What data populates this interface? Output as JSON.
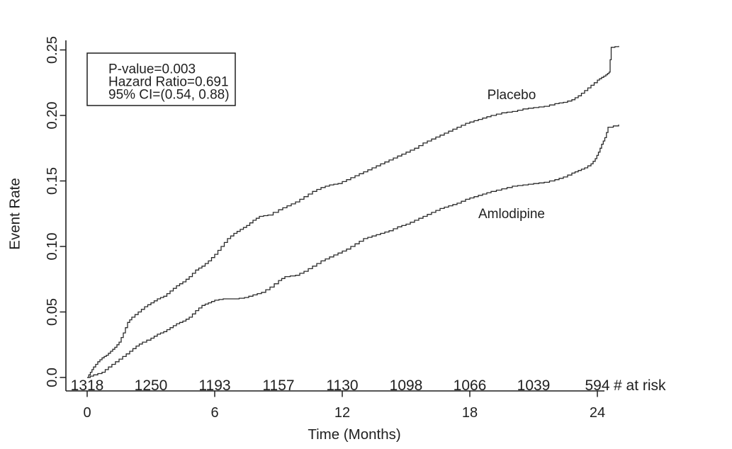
{
  "figure": {
    "background": "#ffffff",
    "ink_color": "#1f1f1f",
    "curve_color": "#2a2a2a"
  },
  "chart_data": {
    "type": "line",
    "subtype": "kaplan_meier_step_cumulative_event_rate",
    "title": "",
    "xlabel": "Time (Months)",
    "ylabel": "Event Rate",
    "xlim": [
      0,
      25
    ],
    "ylim": [
      0.0,
      0.26
    ],
    "grid": false,
    "legend_position": "inline-curve-labels",
    "x_ticks": [
      0,
      6,
      12,
      18,
      24
    ],
    "x_tick_labels": [
      "0",
      "6",
      "12",
      "18",
      "24"
    ],
    "y_ticks": [
      0.0,
      0.05,
      0.1,
      0.15,
      0.2,
      0.25
    ],
    "y_tick_labels": [
      "0.0",
      "0.05",
      "0.10",
      "0.15",
      "0.20",
      "0.25"
    ],
    "stats_box": {
      "p_value": "0.003",
      "hazard_ratio": "0.691",
      "ci_95": "(0.54, 0.88)",
      "lines": [
        "P-value=0.003",
        "Hazard Ratio=0.691",
        "95% CI=(0.54, 0.88)"
      ]
    },
    "at_risk": {
      "label": "# at risk",
      "months": [
        0,
        3,
        6,
        9,
        12,
        15,
        18,
        21,
        24
      ],
      "counts": [
        "1318",
        "1250",
        "1193",
        "1157",
        "1130",
        "1098",
        "1066",
        "1039",
        "594"
      ]
    },
    "series": [
      {
        "name": "Placebo",
        "points": [
          [
            0,
            0.0
          ],
          [
            0.15,
            0.004
          ],
          [
            0.3,
            0.008
          ],
          [
            0.5,
            0.012
          ],
          [
            0.7,
            0.015
          ],
          [
            0.9,
            0.017
          ],
          [
            1.1,
            0.02
          ],
          [
            1.3,
            0.023
          ],
          [
            1.5,
            0.027
          ],
          [
            1.7,
            0.034
          ],
          [
            1.9,
            0.042
          ],
          [
            2.1,
            0.046
          ],
          [
            2.4,
            0.05
          ],
          [
            2.7,
            0.054
          ],
          [
            3.0,
            0.057
          ],
          [
            3.3,
            0.06
          ],
          [
            3.6,
            0.062
          ],
          [
            3.9,
            0.066
          ],
          [
            4.2,
            0.07
          ],
          [
            4.5,
            0.073
          ],
          [
            4.8,
            0.077
          ],
          [
            5.1,
            0.082
          ],
          [
            5.4,
            0.085
          ],
          [
            5.7,
            0.089
          ],
          [
            6.0,
            0.094
          ],
          [
            6.3,
            0.1
          ],
          [
            6.6,
            0.106
          ],
          [
            6.9,
            0.11
          ],
          [
            7.2,
            0.113
          ],
          [
            7.5,
            0.116
          ],
          [
            7.8,
            0.12
          ],
          [
            8.1,
            0.123
          ],
          [
            8.5,
            0.124
          ],
          [
            9.0,
            0.128
          ],
          [
            9.4,
            0.131
          ],
          [
            9.8,
            0.134
          ],
          [
            10.2,
            0.138
          ],
          [
            10.6,
            0.142
          ],
          [
            11.0,
            0.145
          ],
          [
            11.4,
            0.147
          ],
          [
            11.8,
            0.148
          ],
          [
            12.2,
            0.151
          ],
          [
            12.6,
            0.154
          ],
          [
            13.0,
            0.157
          ],
          [
            13.4,
            0.16
          ],
          [
            13.8,
            0.163
          ],
          [
            14.2,
            0.166
          ],
          [
            14.6,
            0.169
          ],
          [
            15.0,
            0.172
          ],
          [
            15.4,
            0.175
          ],
          [
            15.8,
            0.179
          ],
          [
            16.2,
            0.182
          ],
          [
            16.6,
            0.185
          ],
          [
            17.0,
            0.188
          ],
          [
            17.4,
            0.191
          ],
          [
            17.8,
            0.194
          ],
          [
            18.2,
            0.196
          ],
          [
            18.6,
            0.198
          ],
          [
            19.0,
            0.2
          ],
          [
            19.5,
            0.202
          ],
          [
            20.0,
            0.203
          ],
          [
            20.5,
            0.205
          ],
          [
            21.0,
            0.206
          ],
          [
            21.5,
            0.207
          ],
          [
            22.0,
            0.209
          ],
          [
            22.4,
            0.21
          ],
          [
            22.8,
            0.212
          ],
          [
            23.1,
            0.215
          ],
          [
            23.4,
            0.219
          ],
          [
            23.7,
            0.223
          ],
          [
            24.0,
            0.227
          ],
          [
            24.2,
            0.229
          ],
          [
            24.4,
            0.231
          ],
          [
            24.55,
            0.233
          ],
          [
            24.65,
            0.252
          ],
          [
            25.0,
            0.253
          ]
        ]
      },
      {
        "name": "Amlodipine",
        "points": [
          [
            0,
            0.0
          ],
          [
            0.3,
            0.002
          ],
          [
            0.7,
            0.004
          ],
          [
            1.0,
            0.008
          ],
          [
            1.33,
            0.012
          ],
          [
            1.67,
            0.016
          ],
          [
            2.0,
            0.02
          ],
          [
            2.3,
            0.024
          ],
          [
            2.6,
            0.027
          ],
          [
            3.0,
            0.03
          ],
          [
            3.3,
            0.033
          ],
          [
            3.6,
            0.035
          ],
          [
            3.9,
            0.038
          ],
          [
            4.2,
            0.041
          ],
          [
            4.5,
            0.043
          ],
          [
            4.8,
            0.046
          ],
          [
            5.1,
            0.051
          ],
          [
            5.4,
            0.055
          ],
          [
            5.7,
            0.057
          ],
          [
            6.0,
            0.059
          ],
          [
            6.4,
            0.06
          ],
          [
            6.9,
            0.06
          ],
          [
            7.4,
            0.061
          ],
          [
            7.8,
            0.063
          ],
          [
            8.2,
            0.065
          ],
          [
            8.6,
            0.069
          ],
          [
            9.0,
            0.074
          ],
          [
            9.3,
            0.077
          ],
          [
            9.8,
            0.078
          ],
          [
            10.2,
            0.081
          ],
          [
            10.6,
            0.085
          ],
          [
            11.0,
            0.089
          ],
          [
            11.4,
            0.092
          ],
          [
            11.8,
            0.095
          ],
          [
            12.2,
            0.098
          ],
          [
            12.6,
            0.102
          ],
          [
            13.0,
            0.106
          ],
          [
            13.4,
            0.108
          ],
          [
            13.8,
            0.11
          ],
          [
            14.2,
            0.112
          ],
          [
            14.6,
            0.115
          ],
          [
            15.0,
            0.117
          ],
          [
            15.4,
            0.12
          ],
          [
            15.8,
            0.123
          ],
          [
            16.2,
            0.126
          ],
          [
            16.6,
            0.129
          ],
          [
            17.0,
            0.131
          ],
          [
            17.4,
            0.133
          ],
          [
            17.8,
            0.136
          ],
          [
            18.2,
            0.138
          ],
          [
            18.6,
            0.14
          ],
          [
            19.0,
            0.142
          ],
          [
            19.5,
            0.144
          ],
          [
            20.0,
            0.146
          ],
          [
            20.5,
            0.147
          ],
          [
            21.0,
            0.148
          ],
          [
            21.5,
            0.149
          ],
          [
            22.0,
            0.151
          ],
          [
            22.4,
            0.153
          ],
          [
            22.8,
            0.156
          ],
          [
            23.1,
            0.158
          ],
          [
            23.4,
            0.16
          ],
          [
            23.7,
            0.163
          ],
          [
            23.9,
            0.167
          ],
          [
            24.05,
            0.172
          ],
          [
            24.2,
            0.178
          ],
          [
            24.35,
            0.183
          ],
          [
            24.5,
            0.191
          ],
          [
            25.0,
            0.193
          ]
        ]
      }
    ]
  }
}
